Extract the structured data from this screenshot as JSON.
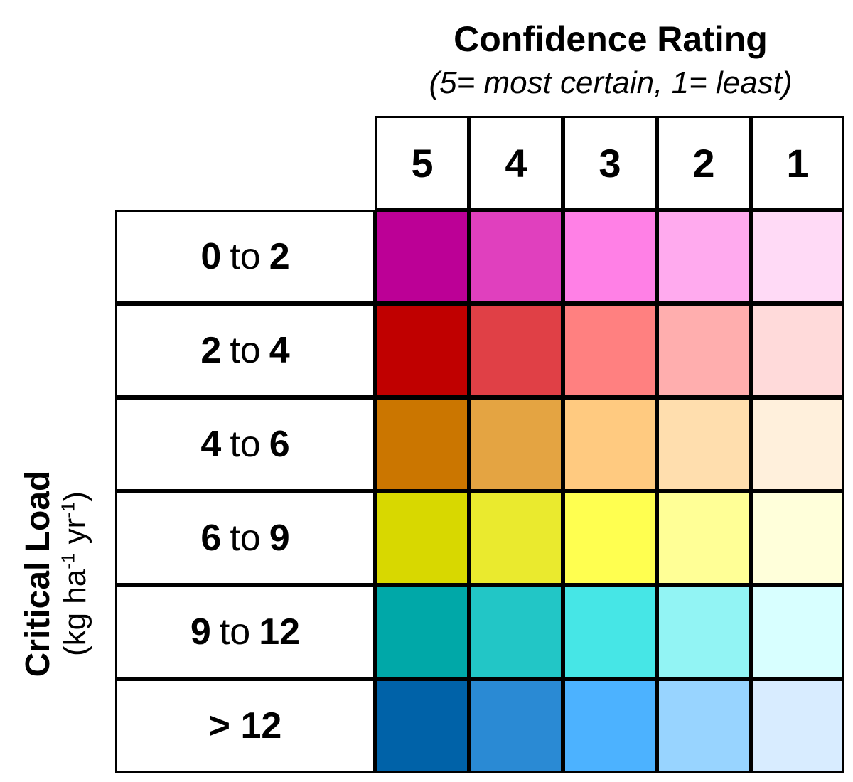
{
  "header": {
    "title": "Confidence Rating",
    "subtitle": "(5= most certain, 1= least)",
    "ratings": [
      "5",
      "4",
      "3",
      "2",
      "1"
    ]
  },
  "side": {
    "title": "Critical Load",
    "unit_open": "(kg ha",
    "unit_exp1": "-1",
    "unit_mid": " yr",
    "unit_exp2": "-1",
    "unit_close": ")"
  },
  "rows": [
    {
      "from": "0",
      "sep": "to",
      "to": "2",
      "colors": [
        "#BC0096",
        "#E040BE",
        "#FF80E6",
        "#FFAAEE",
        "#FFDAF6"
      ]
    },
    {
      "from": "2",
      "sep": "to",
      "to": "4",
      "colors": [
        "#C00000",
        "#E04046",
        "#FF8080",
        "#FFAEAE",
        "#FFDADA"
      ]
    },
    {
      "from": "4",
      "sep": "to",
      "to": "6",
      "colors": [
        "#CB7600",
        "#E4A442",
        "#FFCA80",
        "#FFDEAE",
        "#FFF0DC"
      ]
    },
    {
      "from": "6",
      "sep": "to",
      "to": "9",
      "colors": [
        "#D8D800",
        "#EAEA2E",
        "#FFFF50",
        "#FFFF96",
        "#FFFFDA"
      ]
    },
    {
      "from": "9",
      "sep": "to",
      "to": "12",
      "colors": [
        "#00A8A8",
        "#22C6C6",
        "#46E6E6",
        "#92F4F4",
        "#D8FFFF"
      ]
    },
    {
      "from": "",
      "sep": "",
      "to": "> 12",
      "colors": [
        "#0062A8",
        "#2A8AD4",
        "#4CB2FF",
        "#98D4FF",
        "#D8ECFF"
      ]
    }
  ]
}
